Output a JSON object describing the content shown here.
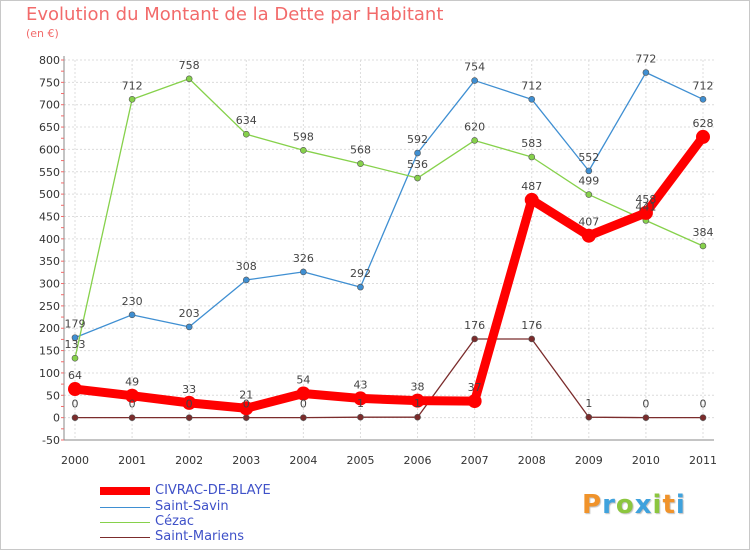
{
  "header": {
    "title": "Evolution du Montant de la Dette par Habitant",
    "unit": "(en €)"
  },
  "brand": {
    "letters": [
      "P",
      "r",
      "o",
      "x",
      "i",
      "t",
      "i"
    ],
    "colors": [
      "#f0932b",
      "#3fa2dd",
      "#8cc63f",
      "#3fa2dd",
      "#8cc63f",
      "#f0932b",
      "#3fa2dd"
    ]
  },
  "chart_data": {
    "type": "line",
    "title": "Evolution du Montant de la Dette par Habitant",
    "ylabel": "(en €)",
    "xlabel": "",
    "x": [
      "2000",
      "2001",
      "2002",
      "2003",
      "2004",
      "2005",
      "2006",
      "2007",
      "2008",
      "2009",
      "2010",
      "2011"
    ],
    "ylim": [
      -50,
      800
    ],
    "yticks": [
      -50,
      0,
      50,
      100,
      150,
      200,
      250,
      300,
      350,
      400,
      450,
      500,
      550,
      600,
      650,
      700,
      750,
      800
    ],
    "grid": true,
    "legend_position": "bottom-left",
    "series": [
      {
        "name": "CIVRAC-DE-BLAYE",
        "color": "#ff0000",
        "values": [
          64,
          49,
          33,
          21,
          54,
          43,
          38,
          37,
          487,
          407,
          458,
          628
        ],
        "labels": [
          "64",
          "49",
          "33",
          "21",
          "54",
          "43",
          "38",
          "37",
          "487",
          "407",
          "458",
          "628"
        ]
      },
      {
        "name": "Saint-Savin",
        "color": "#3f8fd2",
        "values": [
          179,
          230,
          203,
          308,
          326,
          292,
          592,
          754,
          712,
          552,
          772,
          712
        ],
        "labels": [
          "179",
          "230",
          "203",
          "308",
          "326",
          "292",
          "592",
          "754",
          "712",
          "552",
          "772",
          "712"
        ]
      },
      {
        "name": "Cézac",
        "color": "#86d14b",
        "values": [
          133,
          712,
          758,
          634,
          598,
          568,
          536,
          620,
          583,
          499,
          441,
          384
        ],
        "labels": [
          "133",
          "712",
          "758",
          "634",
          "598",
          "568",
          "536",
          "620",
          "583",
          "499",
          "441",
          "384"
        ]
      },
      {
        "name": "Saint-Mariens",
        "color": "#7b2c2c",
        "values": [
          0,
          0,
          0,
          0,
          0,
          1,
          1,
          176,
          176,
          1,
          0,
          0
        ],
        "labels": [
          "0",
          "0",
          "0",
          "0",
          "0",
          "1",
          "1",
          "176",
          "176",
          "1",
          "0",
          "0"
        ]
      }
    ]
  }
}
